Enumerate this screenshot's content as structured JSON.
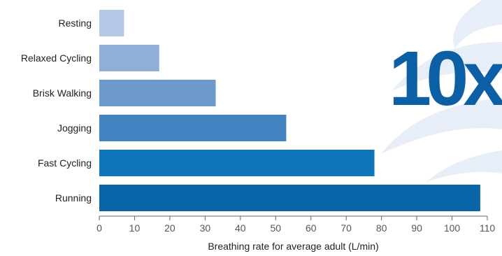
{
  "chart_data": {
    "type": "bar",
    "orientation": "horizontal",
    "categories": [
      "Resting",
      "Relaxed Cycling",
      "Brisk Walking",
      "Jogging",
      "Fast Cycling",
      "Running"
    ],
    "values": [
      7,
      17,
      33,
      53,
      78,
      108
    ],
    "xlabel": "Breathing rate for average adult (L/min)",
    "ylabel": "",
    "title": "",
    "xlim": [
      0,
      110
    ],
    "xticks": [
      0,
      10,
      20,
      30,
      40,
      50,
      60,
      70,
      80,
      90,
      100,
      110
    ],
    "grid": false,
    "legend": "none",
    "bar_colors": [
      "#b3c7e6",
      "#8eb0d8",
      "#6b9acb",
      "#4484c3",
      "#0f75bb",
      "#0a64a8"
    ],
    "annotation": {
      "text": "10x",
      "color": "#0b5fa5"
    },
    "background_swirl_color": "#e8eef7"
  }
}
